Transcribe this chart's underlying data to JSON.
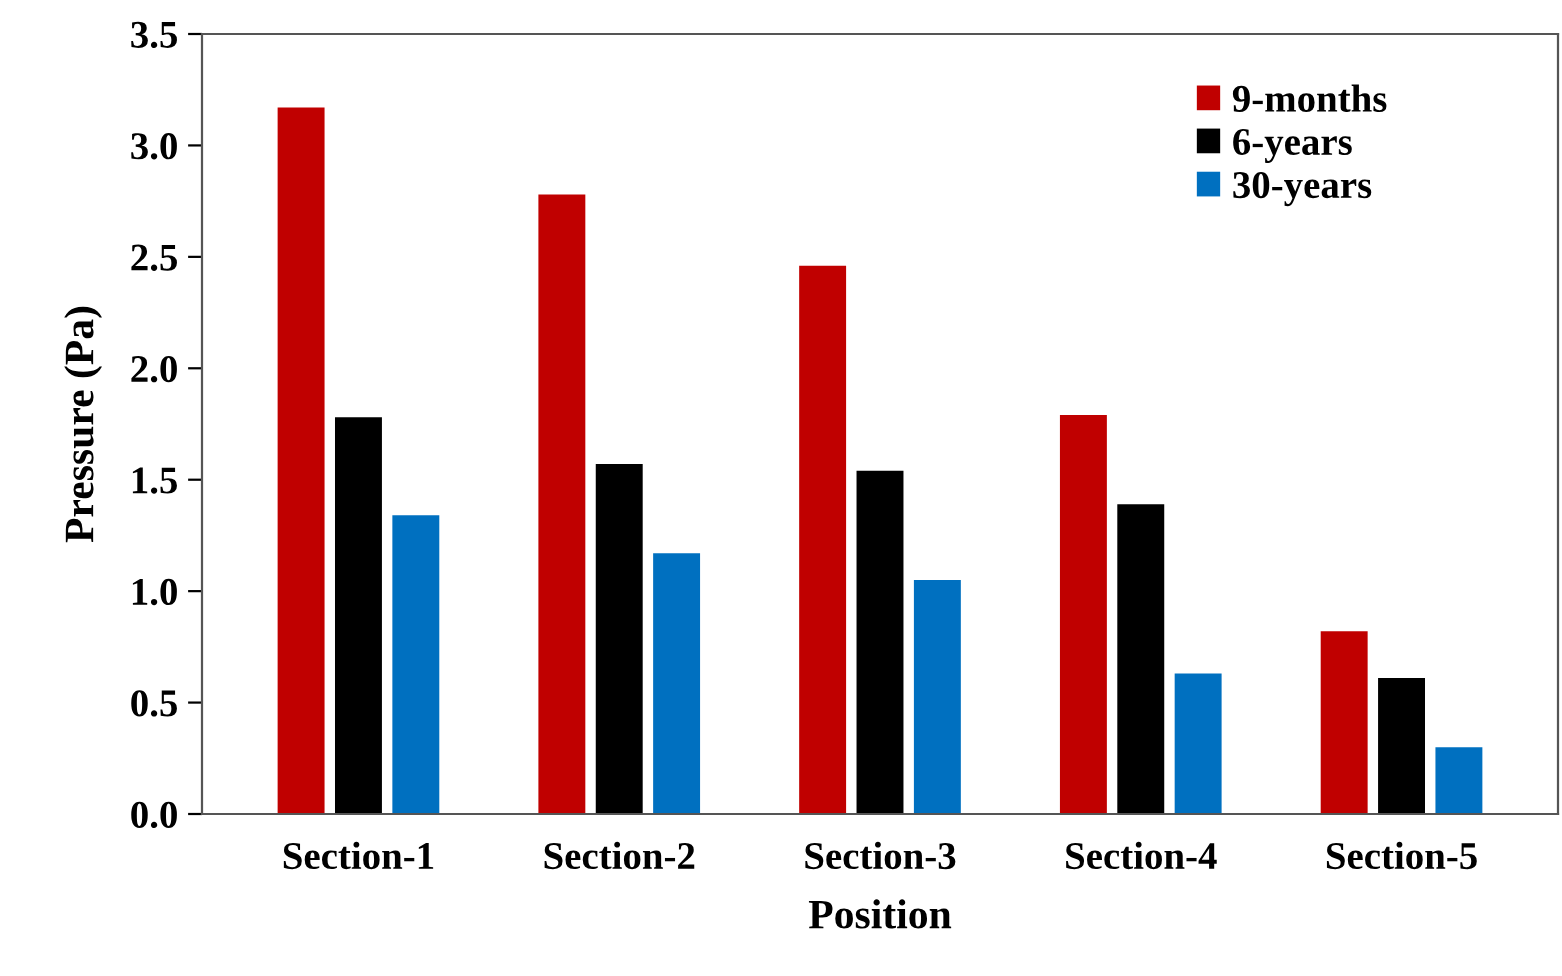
{
  "chart_data": {
    "type": "bar",
    "xlabel": "Position",
    "ylabel": "Pressure (Pa)",
    "categories": [
      "Section-1",
      "Section-2",
      "Section-3",
      "Section-4",
      "Section-5"
    ],
    "series": [
      {
        "name": "9-months",
        "color": "#c00000",
        "values": [
          3.17,
          2.78,
          2.46,
          1.79,
          0.82
        ]
      },
      {
        "name": "6-years",
        "color": "#000000",
        "values": [
          1.78,
          1.57,
          1.54,
          1.39,
          0.61
        ]
      },
      {
        "name": "30-years",
        "color": "#0070c0",
        "values": [
          1.34,
          1.17,
          1.05,
          0.63,
          0.3
        ]
      }
    ],
    "ylim": [
      0,
      3.5
    ],
    "yticks": [
      {
        "value": 0,
        "label": "0.0"
      },
      0.5,
      {
        "value": 1,
        "label": "1.0"
      },
      1.5,
      {
        "value": 2,
        "label": "2.0"
      },
      2.5,
      {
        "value": 3,
        "label": "3.0"
      },
      3.5
    ],
    "grid": false,
    "legend": "top right"
  }
}
